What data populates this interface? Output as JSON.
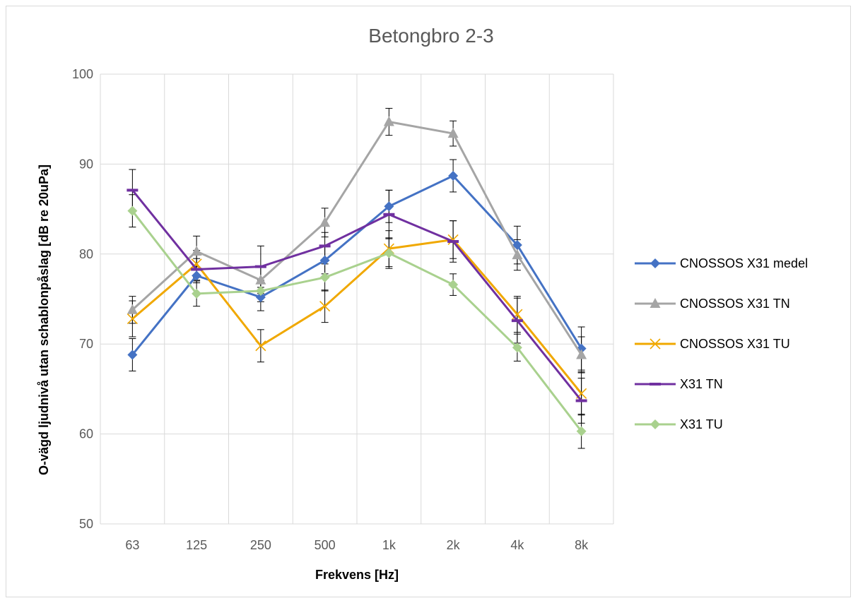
{
  "chart_data": {
    "type": "line",
    "title": "Betongbro 2-3",
    "xlabel": "Frekvens [Hz]",
    "ylabel": "O-vägd ljudnivå utan schablonpåslag [dB re 20uPa]",
    "categories": [
      "63",
      "125",
      "250",
      "500",
      "1k",
      "2k",
      "4k",
      "8k"
    ],
    "ylim": [
      50,
      100
    ],
    "yticks": [
      50,
      60,
      70,
      80,
      90,
      100
    ],
    "grid": true,
    "legend_position": "right",
    "series": [
      {
        "name": "CNOSSOS X31 medel",
        "color": "#4472C4",
        "marker": "diamond",
        "values": [
          68.8,
          77.6,
          75.2,
          79.3,
          85.3,
          88.7,
          81.0,
          69.5
        ],
        "error": [
          1.8,
          0.8,
          1.5,
          1.5,
          1.8,
          1.8,
          2.1,
          2.4
        ]
      },
      {
        "name": "CNOSSOS X31 TN",
        "color": "#A5A5A5",
        "marker": "triangle",
        "values": [
          73.8,
          80.3,
          77.1,
          83.5,
          94.7,
          93.4,
          79.9,
          68.8
        ],
        "error": [
          1.5,
          1.7,
          1.5,
          1.6,
          1.5,
          1.4,
          1.7,
          2.0
        ]
      },
      {
        "name": "CNOSSOS X31 TU",
        "color": "#F0A800",
        "marker": "x",
        "values": [
          72.8,
          78.9,
          69.8,
          74.2,
          80.6,
          81.6,
          73.3,
          64.5
        ],
        "error": [
          2.0,
          1.5,
          1.8,
          1.8,
          2.0,
          2.1,
          2.0,
          2.4
        ]
      },
      {
        "name": "X31 TN",
        "color": "#7030A0",
        "marker": "dash",
        "values": [
          87.1,
          78.3,
          78.6,
          80.9,
          84.4,
          81.4,
          72.6,
          63.7
        ],
        "error": [
          2.3,
          1.2,
          2.3,
          1.5,
          2.7,
          2.3,
          2.5,
          2.5
        ]
      },
      {
        "name": "X31 TU",
        "color": "#A9D18E",
        "marker": "diamond",
        "values": [
          84.8,
          75.6,
          75.9,
          77.4,
          80.1,
          76.6,
          69.6,
          60.3
        ],
        "error": [
          1.8,
          1.4,
          1.2,
          1.5,
          1.7,
          1.2,
          1.5,
          1.9
        ]
      }
    ]
  }
}
